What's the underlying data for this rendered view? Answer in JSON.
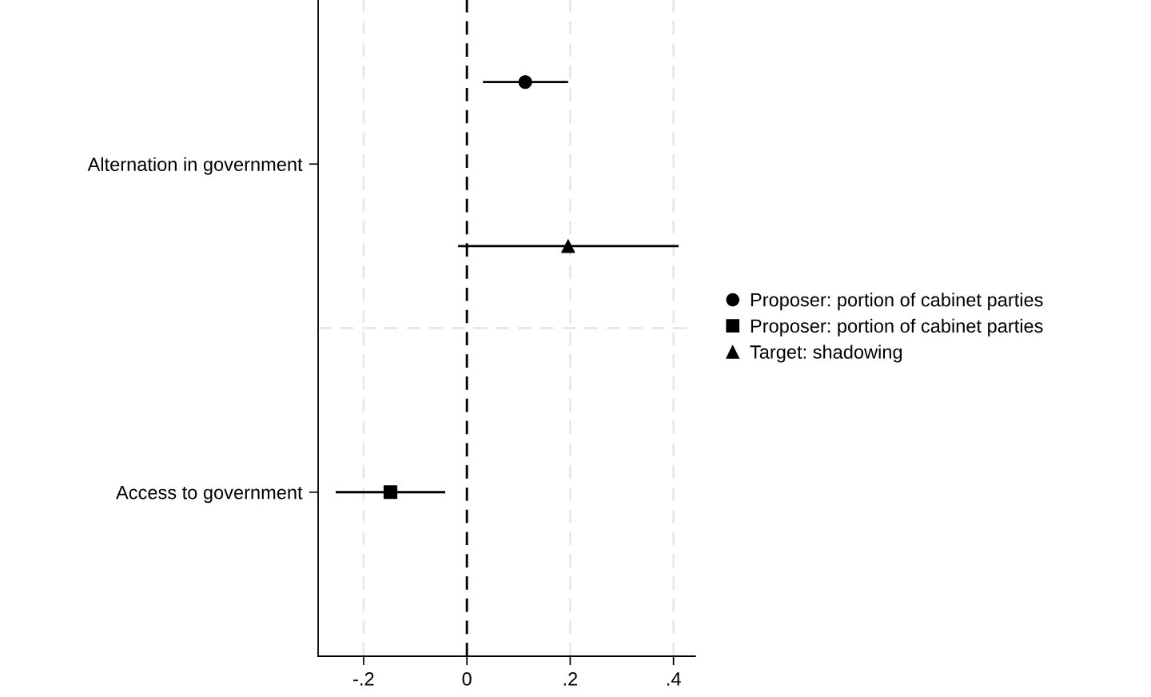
{
  "chart_data": {
    "type": "scatter",
    "orientation": "horizontal",
    "categories": [
      null,
      null,
      "Alternation in government",
      null,
      null,
      null,
      "Access to government",
      null,
      null
    ],
    "series": [
      {
        "name": "Proposer: portion of cabinet parties",
        "color": "#000000",
        "marker": "circle",
        "values": [
          null,
          0.113,
          null,
          null,
          null,
          null,
          null,
          null,
          null
        ],
        "errors": [
          null,
          [
            0.082,
            0.083
          ],
          null,
          null,
          null,
          null,
          null,
          null,
          null
        ]
      },
      {
        "name": "Proposer: portion of cabinet parties",
        "color": "#000000",
        "marker": "square",
        "values": [
          null,
          null,
          null,
          null,
          null,
          null,
          -0.148,
          null,
          null
        ],
        "errors": [
          null,
          null,
          null,
          null,
          null,
          null,
          0.106,
          null,
          null
        ]
      },
      {
        "name": "Target: shadowing",
        "color": "#000000",
        "marker": "triangle",
        "values": [
          null,
          null,
          null,
          0.196,
          null,
          null,
          null,
          null,
          null
        ],
        "errors": [
          null,
          null,
          null,
          [
            0.213,
            0.214
          ],
          null,
          null,
          null,
          null,
          null
        ]
      }
    ],
    "xlim": [
      -0.288,
      0.442
    ],
    "xticks": [
      {
        "value": -0.2,
        "label": "-.2"
      },
      0,
      {
        "value": 0.2,
        "label": ".2"
      },
      {
        "value": 0.4,
        "label": ".4"
      }
    ],
    "ref_lines": [
      {
        "axis": "x",
        "value": 0,
        "color": "#000000",
        "line_style": "dashed"
      }
    ],
    "grid": true,
    "legend": "right"
  }
}
